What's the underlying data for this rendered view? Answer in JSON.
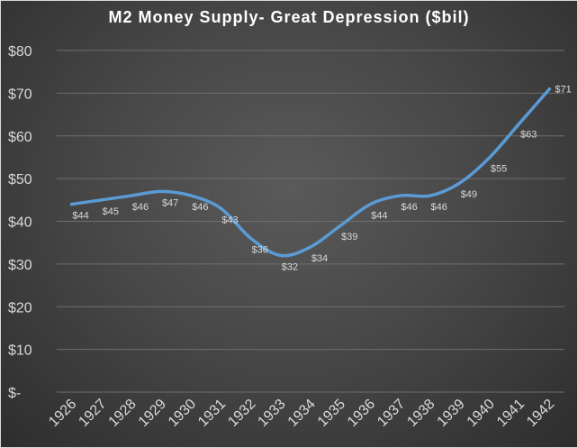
{
  "chart_data": {
    "type": "line",
    "title": "M2 Money Supply-  Great Depression  ($bil)",
    "xlabel": "",
    "ylabel": "",
    "x": [
      "1926",
      "1927",
      "1928",
      "1929",
      "1930",
      "1931",
      "1932",
      "1933",
      "1934",
      "1935",
      "1936",
      "1937",
      "1938",
      "1939",
      "1940",
      "1941",
      "1942"
    ],
    "series": [
      {
        "values": [
          44,
          45,
          46,
          47,
          46,
          43,
          36,
          32,
          34,
          39,
          44,
          46,
          46,
          49,
          55,
          63,
          71
        ],
        "labels": [
          "$44",
          "$45",
          "$46",
          "$47",
          "$46",
          "$43",
          "$36",
          "$32",
          "$34",
          "$39",
          "$44",
          "$46",
          "$46",
          "$49",
          "$55",
          "$63",
          "$71"
        ],
        "color": "#5b9bd5"
      }
    ],
    "ylim": [
      0,
      80
    ],
    "yticks": [
      0,
      10,
      20,
      30,
      40,
      50,
      60,
      70,
      80
    ],
    "ytick_labels": [
      "$-",
      "$10",
      "$20",
      "$30",
      "$40",
      "$50",
      "$60",
      "$70",
      "$80"
    ],
    "grid": true,
    "legend": "none"
  },
  "colors": {
    "line": "#5b9bd5",
    "gridline": "#6e6e6e",
    "text": "#d9d9d9"
  }
}
